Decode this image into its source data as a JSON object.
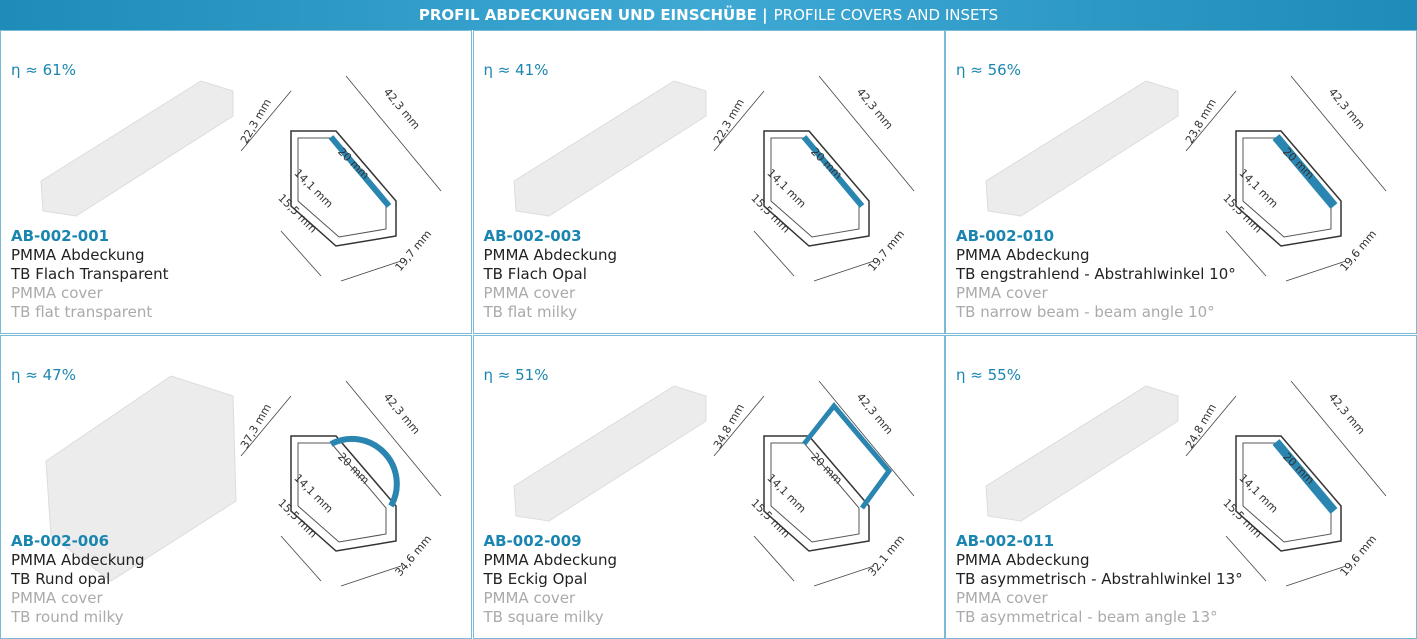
{
  "header": {
    "title_bold": "PROFIL ABDECKUNGEN UND EINSCHÜBE |",
    "title_normal": "PROFILE COVERS AND INSETS"
  },
  "products": [
    {
      "efficiency": "η ≈ 61%",
      "code": "AB-002-001",
      "lines_de": [
        "PMMA Abdeckung",
        "TB Flach Transparent"
      ],
      "lines_en": [
        "PMMA cover",
        "TB flat transparent"
      ],
      "dimensions": [
        "22,3 mm",
        "42,3 mm",
        "20 mm",
        "14,1 mm",
        "15,5 mm",
        "19,7 mm"
      ]
    },
    {
      "efficiency": "η ≈ 41%",
      "code": "AB-002-003",
      "lines_de": [
        "PMMA Abdeckung",
        "TB Flach Opal"
      ],
      "lines_en": [
        "PMMA cover",
        "TB flat milky"
      ],
      "dimensions": [
        "22,3 mm",
        "42,3 mm",
        "20 mm",
        "14,1 mm",
        "15,5 mm",
        "19,7 mm"
      ]
    },
    {
      "efficiency": "η ≈ 56%",
      "code": "AB-002-010",
      "lines_de": [
        "PMMA Abdeckung",
        "TB engstrahlend - Abstrahlwinkel 10°"
      ],
      "lines_en": [
        "PMMA cover",
        "TB narrow beam - beam angle 10°"
      ],
      "dimensions": [
        "23,8 mm",
        "42,3 mm",
        "20 mm",
        "14,1 mm",
        "15,5 mm",
        "19,6 mm"
      ]
    },
    {
      "efficiency": "η ≈ 47%",
      "code": "AB-002-006",
      "lines_de": [
        "PMMA Abdeckung",
        "TB Rund opal"
      ],
      "lines_en": [
        "PMMA cover",
        "TB round milky"
      ],
      "dimensions": [
        "37,3 mm",
        "42,3 mm",
        "20 mm",
        "14,1 mm",
        "15,5 mm",
        "34,6 mm"
      ]
    },
    {
      "efficiency": "η ≈ 51%",
      "code": "AB-002-009",
      "lines_de": [
        "PMMA Abdeckung",
        "TB Eckig Opal"
      ],
      "lines_en": [
        "PMMA cover",
        "TB square milky"
      ],
      "dimensions": [
        "34,8 mm",
        "42,3 mm",
        "20 mm",
        "14,1 mm",
        "15,5 mm",
        "32,1 mm"
      ]
    },
    {
      "efficiency": "η ≈ 55%",
      "code": "AB-002-011",
      "lines_de": [
        "PMMA Abdeckung",
        "TB asymmetrisch - Abstrahlwinkel 13°"
      ],
      "lines_en": [
        "PMMA cover",
        "TB asymmetrical - beam angle 13°"
      ],
      "dimensions": [
        "24,8 mm",
        "42,3 mm",
        "20 mm",
        "14,1 mm",
        "15,5 mm",
        "19,6 mm"
      ]
    }
  ]
}
